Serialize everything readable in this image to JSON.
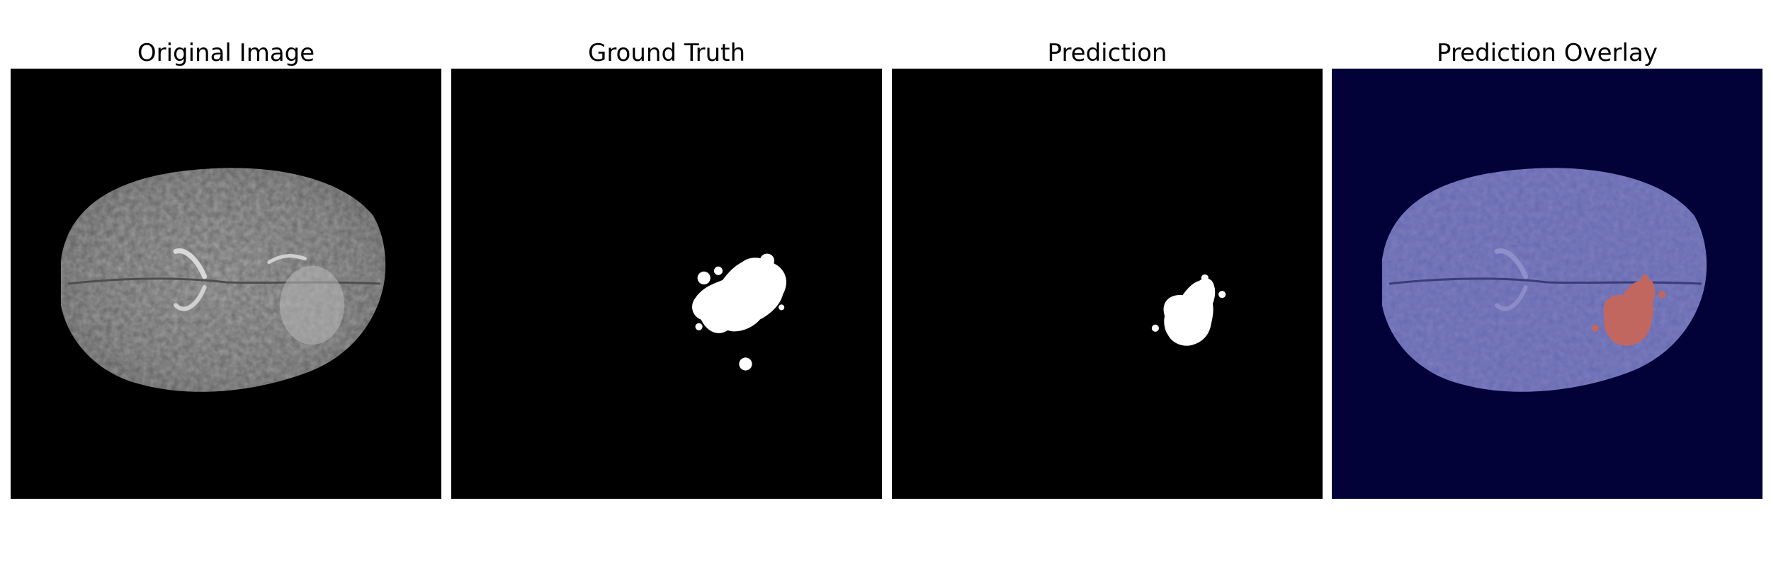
{
  "figure": {
    "panels": [
      {
        "title": "Original Image"
      },
      {
        "title": "Ground Truth"
      },
      {
        "title": "Prediction"
      },
      {
        "title": "Prediction Overlay"
      }
    ]
  },
  "colors": {
    "background": "#ffffff",
    "image_background": "#000000",
    "overlay_background": "#020238",
    "brain_gray": "#9a9a9a",
    "mask_white": "#ffffff",
    "overlay_brain": "#6668b0",
    "overlay_tumor": "#c2675f"
  }
}
